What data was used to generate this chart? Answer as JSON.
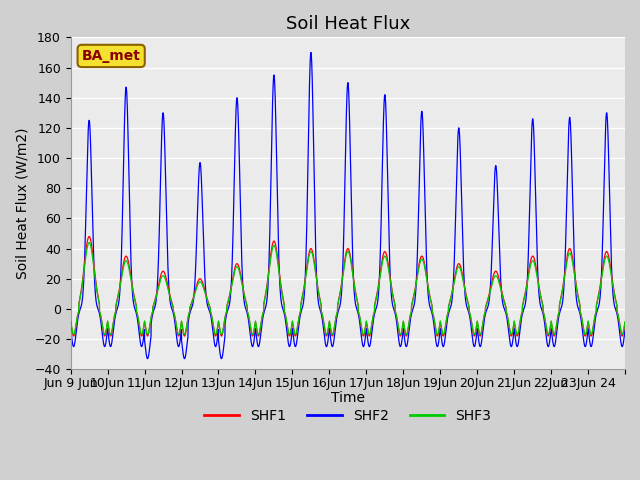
{
  "title": "Soil Heat Flux",
  "ylabel": "Soil Heat Flux (W/m2)",
  "xlabel": "Time",
  "annotation": "BA_met",
  "ylim": [
    -40,
    180
  ],
  "yticks": [
    -40,
    -20,
    0,
    20,
    40,
    60,
    80,
    100,
    120,
    140,
    160,
    180
  ],
  "legend_labels": [
    "SHF1",
    "SHF2",
    "SHF3"
  ],
  "shf1_color": "#ff0000",
  "shf2_color": "#0000ff",
  "shf3_color": "#00cc00",
  "n_days": 15,
  "shf2_peaks": [
    125,
    147,
    130,
    97,
    140,
    155,
    170,
    150,
    142,
    131,
    120,
    95,
    126,
    127,
    130
  ],
  "shf1_peaks": [
    48,
    35,
    25,
    20,
    30,
    45,
    40,
    40,
    38,
    35,
    30,
    25,
    35,
    40,
    38
  ],
  "shf3_peaks": [
    44,
    32,
    22,
    18,
    28,
    42,
    38,
    38,
    35,
    33,
    28,
    22,
    32,
    37,
    35
  ],
  "tick_labels": [
    "Jun 9 Jun",
    "10Jun",
    "11Jun",
    "12Jun",
    "13Jun",
    "14Jun",
    "15Jun",
    "16Jun",
    "17Jun",
    "18Jun",
    "19Jun",
    "20Jun",
    "21Jun",
    "22Jun",
    "23Jun 24"
  ],
  "title_fontsize": 13,
  "axis_fontsize": 10,
  "tick_fontsize": 9,
  "legend_fontsize": 10
}
